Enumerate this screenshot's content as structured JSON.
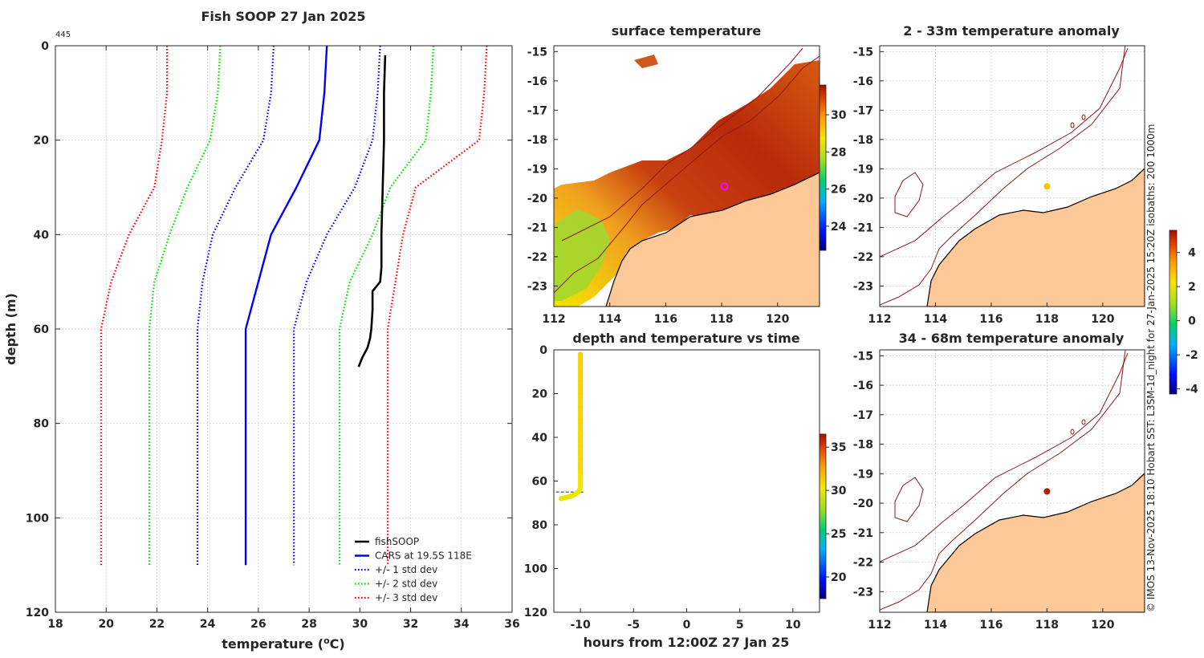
{
  "chart_data": [
    {
      "type": "line",
      "title": "Fish SOOP 27 Jan 2025",
      "annotation": "445",
      "xlabel": "temperature (",
      "xlabel_sup": "o",
      "xlabel_tail": "C)",
      "ylabel": "depth (m)",
      "xlim": [
        18,
        36
      ],
      "ylim": [
        0,
        120
      ],
      "xticks": [
        18,
        20,
        22,
        24,
        26,
        28,
        30,
        32,
        34,
        36
      ],
      "yticks": [
        0,
        20,
        40,
        60,
        80,
        100,
        120
      ],
      "legend_position": "bottom-right",
      "series": [
        {
          "name": "fishSOOP",
          "color": "#000000",
          "style": "solid",
          "width": 2.6,
          "x": [
            31.0,
            30.95,
            30.95,
            30.9,
            30.85,
            30.85,
            30.8,
            30.5,
            30.5,
            30.45,
            30.4,
            30.3,
            30.1,
            29.95
          ],
          "y": [
            2,
            10,
            20,
            30,
            40,
            47,
            50,
            52,
            56,
            60,
            62,
            64,
            66,
            68
          ]
        },
        {
          "name": "CARS at 19.5S 118E",
          "color": "#0000ff",
          "style": "solid",
          "width": 2.4,
          "x": [
            28.7,
            28.6,
            28.4,
            27.5,
            26.5,
            26.0,
            25.5,
            25.5
          ],
          "y": [
            0,
            10,
            20,
            30,
            40,
            50,
            60,
            110
          ]
        },
        {
          "name": "+/- 1 std dev",
          "color": "#0000ff",
          "style": "dotted",
          "width": 2.2,
          "x": [
            26.6,
            26.5,
            26.2,
            25.1,
            24.2,
            23.8,
            23.6,
            23.6
          ],
          "y": [
            0,
            10,
            20,
            30,
            40,
            50,
            60,
            110
          ]
        },
        {
          "name": "+/- 1 std dev (upper)",
          "color": "#0000ff",
          "style": "dotted",
          "width": 2.2,
          "legend": false,
          "x": [
            30.8,
            30.7,
            30.5,
            29.8,
            28.7,
            27.9,
            27.4,
            27.4
          ],
          "y": [
            0,
            10,
            20,
            30,
            40,
            50,
            60,
            110
          ]
        },
        {
          "name": "+/- 2 std dev",
          "color": "#00e000",
          "style": "dotted",
          "width": 2.2,
          "x": [
            24.5,
            24.4,
            24.1,
            23.2,
            22.5,
            21.9,
            21.7,
            21.7
          ],
          "y": [
            0,
            10,
            20,
            30,
            40,
            50,
            60,
            110
          ]
        },
        {
          "name": "+/- 2 std dev (upper)",
          "color": "#00e000",
          "style": "dotted",
          "width": 2.2,
          "legend": false,
          "x": [
            32.9,
            32.8,
            32.6,
            31.2,
            30.5,
            29.6,
            29.2,
            29.2
          ],
          "y": [
            0,
            10,
            20,
            30,
            40,
            50,
            60,
            110
          ]
        },
        {
          "name": "+/- 3 std dev",
          "color": "#ff0000",
          "style": "dotted",
          "width": 2.2,
          "x": [
            22.4,
            22.4,
            22.2,
            21.9,
            20.9,
            20.2,
            19.8,
            19.8
          ],
          "y": [
            0,
            10,
            20,
            30,
            40,
            50,
            60,
            110
          ]
        },
        {
          "name": "+/- 3 std dev (upper)",
          "color": "#ff0000",
          "style": "dotted",
          "width": 2.2,
          "legend": false,
          "x": [
            35.0,
            34.9,
            34.7,
            32.2,
            31.7,
            31.4,
            31.1,
            31.1
          ],
          "y": [
            0,
            10,
            20,
            30,
            40,
            50,
            60,
            110
          ]
        }
      ]
    },
    {
      "type": "heatmap",
      "title": "surface temperature",
      "xlim": [
        112,
        121.5
      ],
      "ylim": [
        -23.7,
        -14.8
      ],
      "xticks": [
        112,
        114,
        116,
        118,
        120
      ],
      "yticks": [
        -15,
        -16,
        -17,
        -18,
        -19,
        -20,
        -21,
        -22,
        -23
      ],
      "colorbar": {
        "range": [
          22.7,
          31.6
        ],
        "ticks": [
          24,
          26,
          28,
          30
        ]
      },
      "marker": {
        "lon": 118.1,
        "lat": -19.6,
        "color": "#ff00ff"
      }
    },
    {
      "type": "scatter",
      "title": "depth and temperature vs time",
      "xlabel": "hours from 12:00Z 27 Jan 25",
      "xlim": [
        -12.5,
        12.5
      ],
      "ylim": [
        0,
        120
      ],
      "xticks": [
        -10,
        -5,
        0,
        5,
        10
      ],
      "yticks": [
        0,
        20,
        40,
        60,
        80,
        100,
        120
      ],
      "colorbar": {
        "range": [
          17.5,
          36.5
        ],
        "ticks": [
          20,
          25,
          30,
          35
        ]
      },
      "points": {
        "hours": [
          -10,
          -10,
          -10,
          -10,
          -10,
          -10,
          -10,
          -10,
          -10,
          -10,
          -10,
          -10,
          -10.2,
          -10.5,
          -10.9,
          -11.4,
          -11.8
        ],
        "depth": [
          2,
          8,
          14,
          20,
          26,
          32,
          38,
          44,
          50,
          56,
          60,
          63,
          65,
          66,
          67,
          67.5,
          68
        ],
        "temp": [
          31,
          31,
          31,
          30.9,
          30.9,
          30.9,
          30.8,
          30.8,
          30.8,
          30.5,
          30.4,
          30.3,
          30.2,
          30.1,
          30.0,
          30.0,
          29.9
        ]
      }
    },
    {
      "type": "heatmap",
      "title": "2 - 33m temperature anomaly",
      "xlim": [
        112,
        121.5
      ],
      "ylim": [
        -23.7,
        -14.8
      ],
      "xticks": [
        112,
        114,
        116,
        118,
        120
      ],
      "yticks": [
        -15,
        -16,
        -17,
        -18,
        -19,
        -20,
        -21,
        -22,
        -23
      ],
      "marker": {
        "lon": 118,
        "lat": -19.6,
        "value": 2.5,
        "color": "#f5c400"
      }
    },
    {
      "type": "heatmap",
      "title": "34 - 68m temperature anomaly",
      "xlim": [
        112,
        121.5
      ],
      "ylim": [
        -23.7,
        -14.8
      ],
      "xticks": [
        112,
        114,
        116,
        118,
        120
      ],
      "yticks": [
        -15,
        -16,
        -17,
        -18,
        -19,
        -20,
        -21,
        -22,
        -23
      ],
      "marker": {
        "lon": 118,
        "lat": -19.6,
        "value": 4.6,
        "color": "#b81c00"
      }
    }
  ],
  "anomaly_colorbar": {
    "range": [
      -4.3,
      5.3
    ],
    "ticks": [
      4,
      2,
      0,
      -2,
      -4
    ]
  },
  "credit": "© IMOS 13-Nov-2025 18:10 Hobart SST: L3SM-1d_night for 27-Jan-2025 15:20Z isobaths: 200  1000m"
}
